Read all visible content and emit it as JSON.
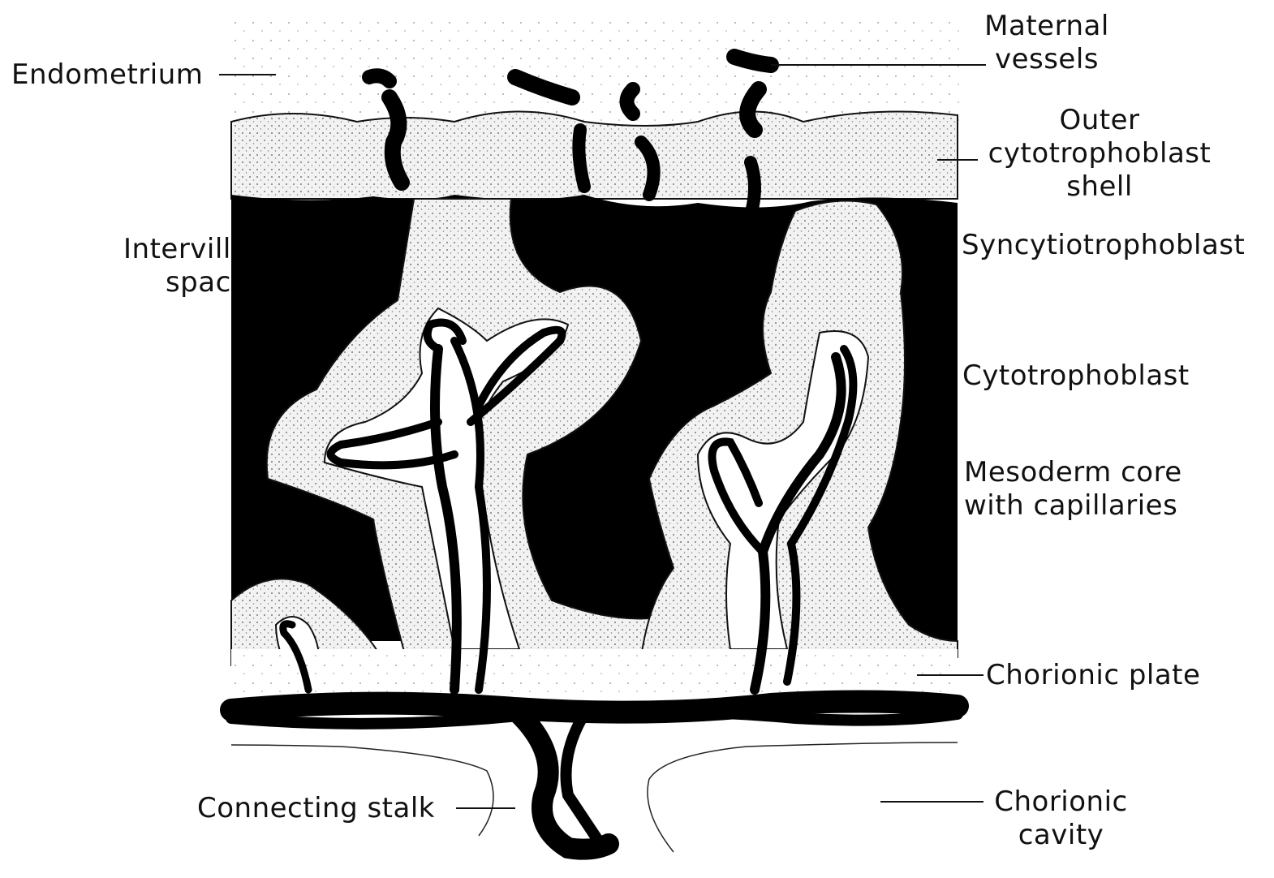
{
  "labels": {
    "endometrium": "Endometrium",
    "maternal_vessels": [
      "Maternal",
      "vessels"
    ],
    "outer_shell": [
      "Outer",
      "cytotrophoblast",
      "shell"
    ],
    "intervillous": [
      "Intervill",
      "spac"
    ],
    "syncytiotrophoblast": "Syncytiotrophoblast",
    "cytotrophoblast": "Cytotrophoblast",
    "mesoderm_core": [
      "Mesoderm core",
      "with capillaries"
    ],
    "chorionic_plate": "Chorionic plate",
    "connecting_stalk": "Connecting stalk",
    "chorionic_cavity": [
      "Chorionic",
      "cavity"
    ]
  },
  "colors": {
    "ink": "#111111",
    "stipple": "#e9e9e9",
    "space": "#000000",
    "core": "#ffffff"
  }
}
